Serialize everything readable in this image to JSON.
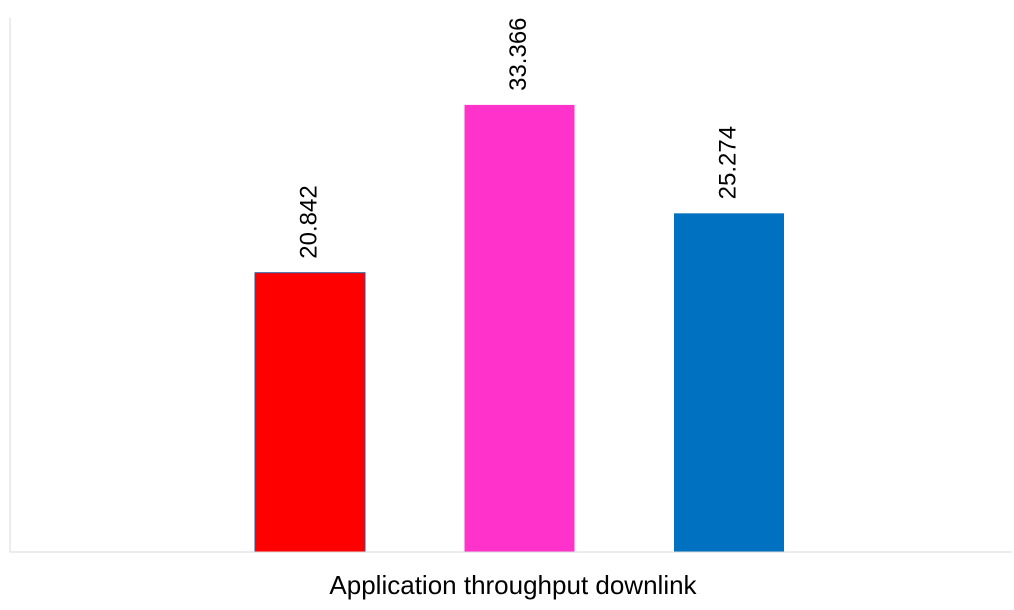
{
  "chart_data": {
    "type": "bar",
    "categories": [
      ""
    ],
    "series": [
      {
        "values": [
          20.842
        ],
        "color": "#FF0000",
        "label": "20.842"
      },
      {
        "values": [
          33.366
        ],
        "color": "#FF33CC",
        "label": "33.366"
      },
      {
        "values": [
          25.274
        ],
        "color": "#0070C0",
        "label": "25.274"
      }
    ],
    "title": "",
    "xlabel": "Application throughput downlink",
    "ylabel": "",
    "ylim": [
      0,
      40
    ],
    "grid": false,
    "legend": "none"
  }
}
